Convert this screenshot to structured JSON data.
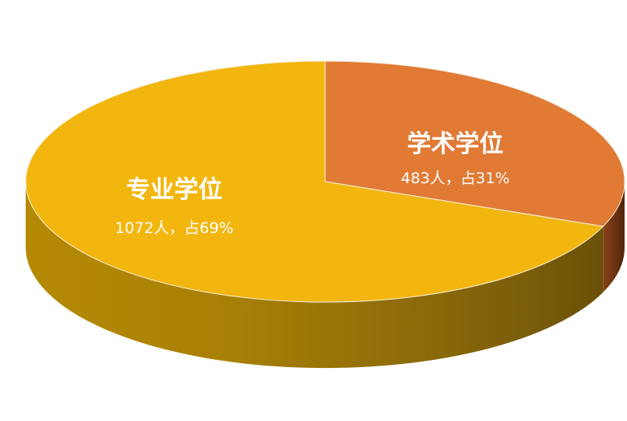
{
  "chart_data": {
    "type": "pie",
    "style": "3d",
    "categories": [
      "学术学位",
      "专业学位"
    ],
    "values": [
      483,
      1072
    ],
    "percent": [
      31,
      69
    ],
    "unit": "人",
    "labels": [
      {
        "name": "学术学位",
        "text": "483人，占31%"
      },
      {
        "name": "专业学位",
        "text": "1072人，占69%"
      }
    ],
    "colors": {
      "学术学位": {
        "top": "#e07a35",
        "side": "#6e3412"
      },
      "专业学位": {
        "top": "#f2b60f",
        "side": "#8a6a08"
      }
    },
    "legend": "none",
    "grid": false
  }
}
